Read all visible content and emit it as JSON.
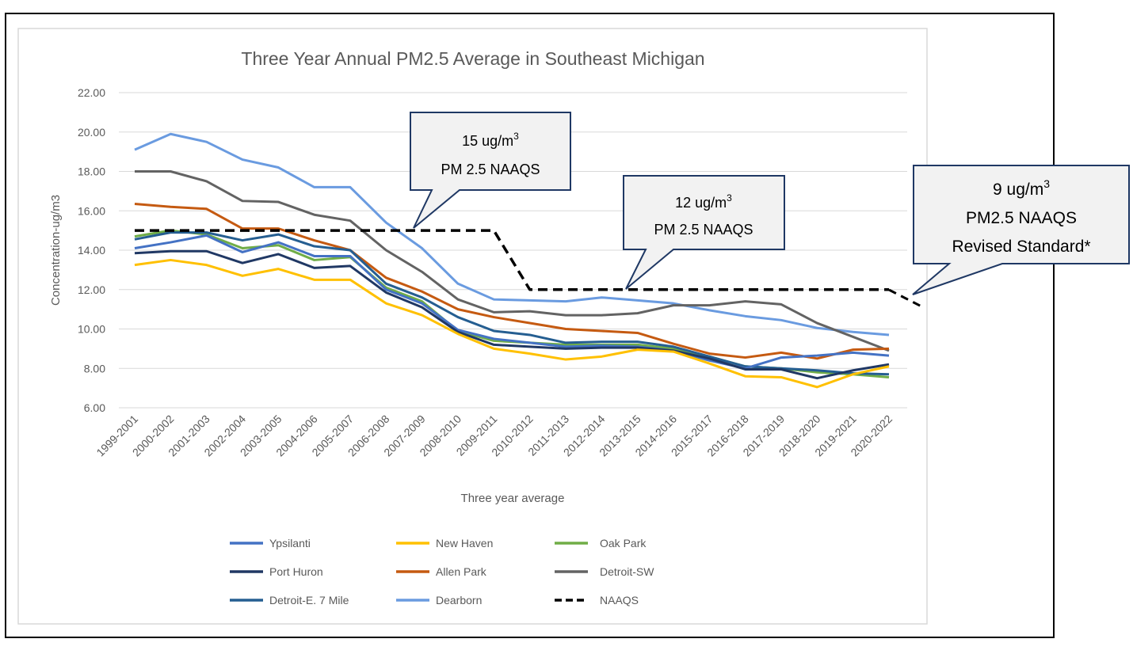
{
  "chart_data": {
    "type": "line",
    "title": "Three Year Annual PM2.5 Average in Southeast Michigan",
    "xlabel": "Three year average",
    "ylabel": "Concentration-ug/m3",
    "ylim": [
      6,
      22
    ],
    "yticks": [
      "6.00",
      "8.00",
      "10.00",
      "12.00",
      "14.00",
      "16.00",
      "18.00",
      "20.00",
      "22.00"
    ],
    "grid": true,
    "legend_placement": "bottom",
    "categories": [
      "1999-2001",
      "2000-2002",
      "2001-2003",
      "2002-2004",
      "2003-2005",
      "2004-2006",
      "2005-2007",
      "2006-2008",
      "2007-2009",
      "2008-2010",
      "2009-2011",
      "2010-2012",
      "2011-2013",
      "2012-2014",
      "2013-2015",
      "2014-2016",
      "2015-2017",
      "2016-2018",
      "2017-2019",
      "2018-2020",
      "2019-2021",
      "2020-2022"
    ],
    "series": [
      {
        "name": "Ypsilanti",
        "color": "#4472C4",
        "dashed": false,
        "values": [
          14.1,
          14.4,
          14.75,
          13.9,
          14.4,
          13.7,
          13.7,
          12.0,
          11.3,
          9.95,
          9.5,
          9.3,
          9.1,
          9.15,
          9.1,
          8.9,
          8.4,
          8.0,
          8.55,
          8.65,
          8.8,
          8.65
        ]
      },
      {
        "name": "New Haven",
        "color": "#FFC000",
        "dashed": false,
        "values": [
          13.25,
          13.5,
          13.25,
          12.7,
          13.05,
          12.5,
          12.5,
          11.3,
          10.7,
          9.75,
          9.0,
          8.75,
          8.45,
          8.6,
          8.95,
          8.85,
          8.25,
          7.6,
          7.55,
          7.05,
          7.7,
          8.1
        ]
      },
      {
        "name": "Oak Park",
        "color": "#70AD47",
        "dashed": false,
        "values": [
          14.7,
          15.0,
          14.8,
          14.1,
          14.25,
          13.5,
          13.65,
          12.1,
          11.4,
          9.9,
          9.4,
          9.3,
          9.2,
          9.2,
          9.2,
          9.0,
          8.6,
          8.1,
          8.0,
          7.8,
          7.7,
          7.55
        ]
      },
      {
        "name": "Port Huron",
        "color": "#203864",
        "dashed": false,
        "values": [
          13.85,
          13.95,
          13.95,
          13.35,
          13.8,
          13.1,
          13.2,
          11.85,
          11.1,
          9.85,
          9.2,
          9.1,
          9.0,
          9.05,
          9.05,
          8.9,
          8.5,
          7.95,
          7.95,
          7.5,
          7.9,
          8.2
        ]
      },
      {
        "name": "Allen Park",
        "color": "#C55A11",
        "dashed": false,
        "values": [
          16.35,
          16.2,
          16.1,
          15.1,
          15.1,
          14.5,
          14.0,
          12.6,
          11.9,
          11.0,
          10.6,
          10.3,
          10.0,
          9.9,
          9.8,
          9.25,
          8.75,
          8.55,
          8.8,
          8.5,
          8.95,
          9.0
        ]
      },
      {
        "name": "Detroit-SW",
        "color": "#636363",
        "dashed": false,
        "values": [
          18.0,
          18.0,
          17.5,
          16.5,
          16.45,
          15.8,
          15.5,
          14.0,
          12.9,
          11.5,
          10.85,
          10.9,
          10.7,
          10.7,
          10.8,
          11.2,
          11.2,
          11.4,
          11.25,
          10.3,
          9.6,
          8.9
        ]
      },
      {
        "name": "Detroit-E. 7 Mile",
        "color": "#255E91",
        "dashed": false,
        "values": [
          14.55,
          14.9,
          14.9,
          14.5,
          14.8,
          14.2,
          14.0,
          12.3,
          11.6,
          10.6,
          9.9,
          9.7,
          9.3,
          9.35,
          9.35,
          9.1,
          8.6,
          8.1,
          8.0,
          7.9,
          7.75,
          7.7
        ]
      },
      {
        "name": "Dearborn",
        "color": "#6A9BE0",
        "dashed": false,
        "values": [
          19.1,
          19.9,
          19.5,
          18.6,
          18.2,
          17.2,
          17.2,
          15.4,
          14.1,
          12.3,
          11.5,
          11.45,
          11.4,
          11.6,
          11.45,
          11.3,
          10.95,
          10.65,
          10.45,
          10.05,
          9.85,
          9.7
        ]
      },
      {
        "name": "NAAQS",
        "color": "#000000",
        "dashed": true,
        "values": [
          15,
          15,
          15,
          15,
          15,
          15,
          15,
          15,
          15,
          15,
          15,
          12,
          12,
          12,
          12,
          12,
          12,
          12,
          12,
          12,
          12,
          12
        ]
      }
    ],
    "annotations": [
      {
        "line1": "15 ug/m",
        "sup": "3",
        "line2": "PM 2.5 NAAQS"
      },
      {
        "line1": "12 ug/m",
        "sup": "3",
        "line2": "PM 2.5 NAAQS"
      },
      {
        "line1": "9 ug/m",
        "sup": "3",
        "line2": "PM2.5 NAAQS",
        "line3": "Revised Standard*"
      }
    ]
  }
}
